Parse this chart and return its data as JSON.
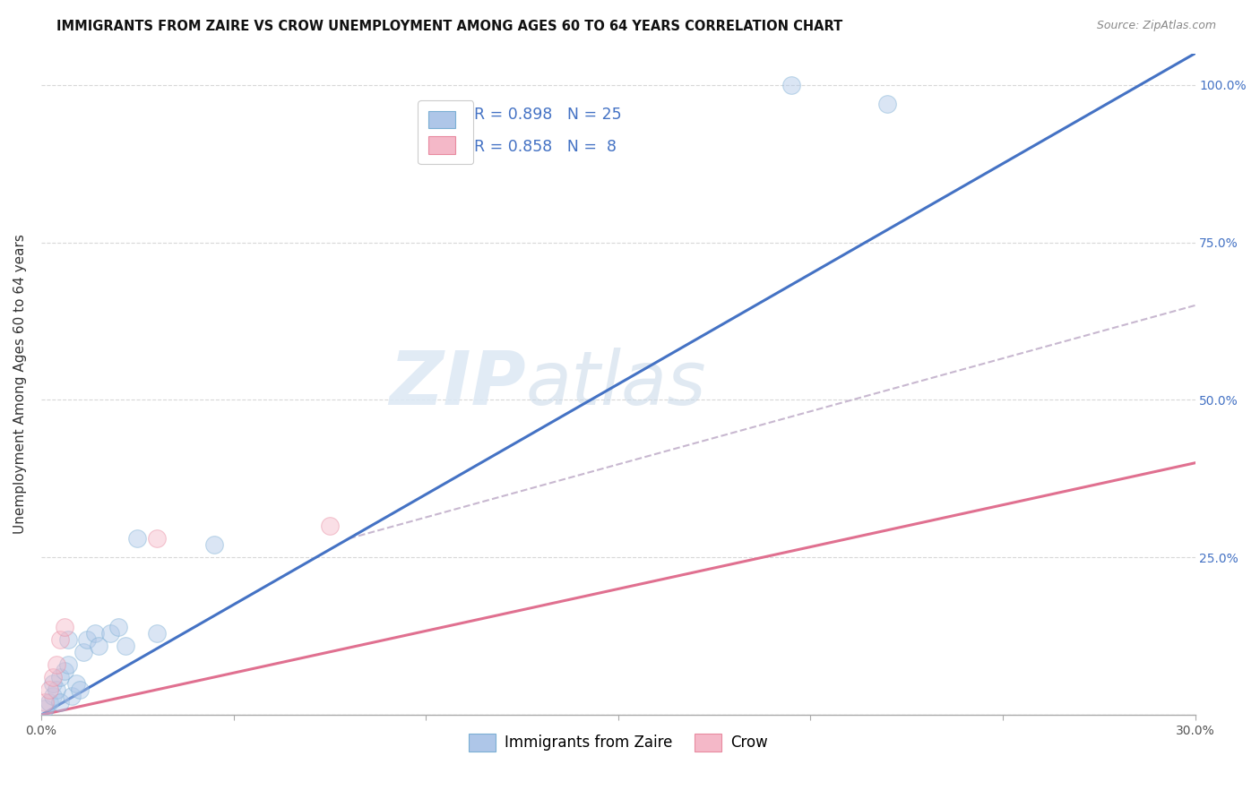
{
  "title": "IMMIGRANTS FROM ZAIRE VS CROW UNEMPLOYMENT AMONG AGES 60 TO 64 YEARS CORRELATION CHART",
  "source": "Source: ZipAtlas.com",
  "ylabel": "Unemployment Among Ages 60 to 64 years",
  "xlim": [
    0.0,
    0.3
  ],
  "ylim": [
    0.0,
    1.05
  ],
  "xticks": [
    0.0,
    0.05,
    0.1,
    0.15,
    0.2,
    0.25,
    0.3
  ],
  "yticks": [
    0.0,
    0.25,
    0.5,
    0.75,
    1.0
  ],
  "right_ytick_labels": [
    "",
    "25.0%",
    "50.0%",
    "75.0%",
    "100.0%"
  ],
  "xtick_labels": [
    "0.0%",
    "",
    "",
    "",
    "",
    "",
    "30.0%"
  ],
  "blue_R": "0.898",
  "blue_N": "25",
  "pink_R": "0.858",
  "pink_N": " 8",
  "legend1_label": "Immigrants from Zaire",
  "legend2_label": "Crow",
  "watermark_zip": "ZIP",
  "watermark_atlas": "atlas",
  "blue_scatter_x": [
    0.001,
    0.002,
    0.003,
    0.003,
    0.004,
    0.005,
    0.005,
    0.006,
    0.007,
    0.007,
    0.008,
    0.009,
    0.01,
    0.011,
    0.012,
    0.014,
    0.015,
    0.018,
    0.02,
    0.022,
    0.025,
    0.03,
    0.045,
    0.195,
    0.22
  ],
  "blue_scatter_y": [
    0.01,
    0.02,
    0.03,
    0.05,
    0.04,
    0.06,
    0.02,
    0.07,
    0.08,
    0.12,
    0.03,
    0.05,
    0.04,
    0.1,
    0.12,
    0.13,
    0.11,
    0.13,
    0.14,
    0.11,
    0.28,
    0.13,
    0.27,
    1.0,
    0.97
  ],
  "pink_scatter_x": [
    0.001,
    0.002,
    0.003,
    0.004,
    0.005,
    0.006,
    0.03,
    0.075
  ],
  "pink_scatter_y": [
    0.02,
    0.04,
    0.06,
    0.08,
    0.12,
    0.14,
    0.28,
    0.3
  ],
  "blue_line_x": [
    0.0,
    0.3
  ],
  "blue_line_y": [
    0.0,
    1.05
  ],
  "pink_line_x": [
    0.0,
    0.3
  ],
  "pink_line_y": [
    0.0,
    0.4
  ],
  "dash_line_x": [
    0.08,
    0.3
  ],
  "dash_line_y": [
    0.28,
    0.65
  ],
  "blue_color": "#aec6e8",
  "pink_color": "#f4b8c8",
  "blue_scatter_edge": "#7bafd4",
  "pink_scatter_edge": "#e88aa0",
  "blue_line_color": "#4472C4",
  "pink_line_color": "#e07090",
  "dash_line_color": "#c8b8d0",
  "title_fontsize": 10.5,
  "axis_label_fontsize": 11,
  "tick_fontsize": 10,
  "scatter_size": 200,
  "scatter_alpha": 0.45,
  "background_color": "#ffffff",
  "grid_color": "#d8d8d8"
}
